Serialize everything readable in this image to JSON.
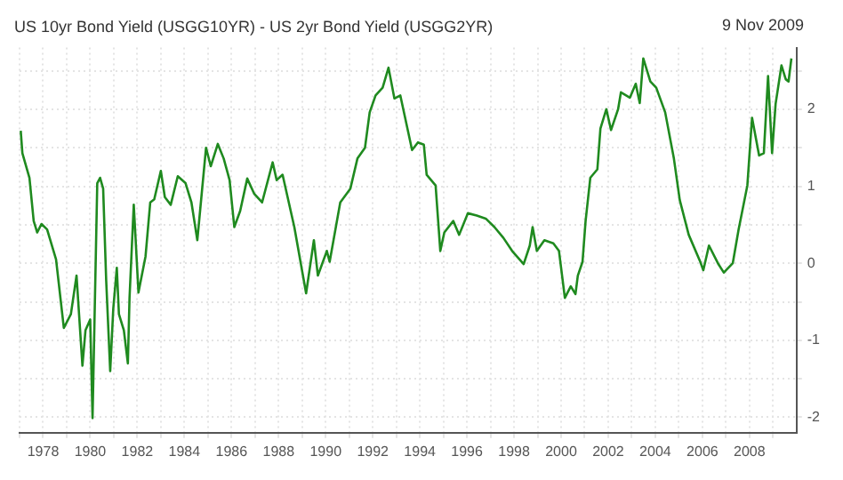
{
  "chart_data": {
    "type": "line",
    "title": "US 10yr Bond Yield (USGG10YR) - US 2yr Bond Yield (USGG2YR)",
    "annotations": [
      "9 Nov 2009"
    ],
    "series": [
      {
        "color": "#1f8a1f",
        "x": [
          1977.05,
          1977.12,
          1977.42,
          1977.6,
          1977.75,
          1977.93,
          1978.17,
          1978.55,
          1978.88,
          1979.18,
          1979.42,
          1979.67,
          1979.8,
          1980.0,
          1980.1,
          1980.17,
          1980.3,
          1980.42,
          1980.55,
          1980.68,
          1980.85,
          1980.98,
          1981.13,
          1981.22,
          1981.43,
          1981.6,
          1981.67,
          1981.85,
          1982.05,
          1982.35,
          1982.55,
          1982.72,
          1983.0,
          1983.17,
          1983.42,
          1983.72,
          1984.05,
          1984.3,
          1984.55,
          1984.92,
          1985.12,
          1985.42,
          1985.67,
          1985.92,
          1986.12,
          1986.37,
          1986.67,
          1986.97,
          1987.3,
          1987.75,
          1987.92,
          1988.17,
          1988.67,
          1989.17,
          1989.5,
          1989.67,
          1990.05,
          1990.17,
          1990.62,
          1991.05,
          1991.35,
          1991.67,
          1991.87,
          1992.12,
          1992.42,
          1992.67,
          1992.92,
          1993.17,
          1993.67,
          1993.92,
          1994.17,
          1994.29,
          1994.67,
          1994.87,
          1995.04,
          1995.42,
          1995.67,
          1996.04,
          1996.42,
          1996.8,
          1997.17,
          1997.55,
          1997.92,
          1998.41,
          1998.67,
          1998.79,
          1998.97,
          1999.29,
          1999.67,
          1999.91,
          2000.16,
          2000.41,
          2000.61,
          2000.71,
          2000.91,
          2001.04,
          2001.24,
          2001.54,
          2001.67,
          2001.92,
          2002.12,
          2002.42,
          2002.54,
          2002.92,
          2003.17,
          2003.34,
          2003.49,
          2003.79,
          2004.04,
          2004.42,
          2004.79,
          2005.04,
          2005.42,
          2005.91,
          2006.04,
          2006.28,
          2006.66,
          2006.91,
          2007.29,
          2007.54,
          2007.91,
          2008.11,
          2008.41,
          2008.61,
          2008.79,
          2008.96,
          2009.11,
          2009.36,
          2009.54,
          2009.66,
          2009.78
        ],
        "values": [
          1.72,
          1.43,
          1.11,
          0.55,
          0.4,
          0.51,
          0.44,
          0.05,
          -0.84,
          -0.66,
          -0.16,
          -1.33,
          -0.87,
          -0.73,
          -2.01,
          -2.01,
          1.04,
          1.11,
          0.97,
          -0.23,
          -1.4,
          -0.59,
          -0.06,
          -0.66,
          -0.87,
          -1.3,
          -0.45,
          0.76,
          -0.38,
          0.09,
          0.79,
          0.83,
          1.2,
          0.86,
          0.76,
          1.13,
          1.04,
          0.79,
          0.3,
          1.5,
          1.26,
          1.55,
          1.36,
          1.08,
          0.47,
          0.68,
          1.1,
          0.9,
          0.79,
          1.31,
          1.08,
          1.15,
          0.47,
          -0.39,
          0.3,
          -0.16,
          0.16,
          0.02,
          0.79,
          0.97,
          1.36,
          1.5,
          1.96,
          2.18,
          2.28,
          2.54,
          2.14,
          2.18,
          1.47,
          1.57,
          1.54,
          1.15,
          1.01,
          0.16,
          0.4,
          0.55,
          0.37,
          0.65,
          0.62,
          0.58,
          0.47,
          0.33,
          0.16,
          -0.01,
          0.23,
          0.47,
          0.16,
          0.3,
          0.26,
          0.16,
          -0.45,
          -0.3,
          -0.4,
          -0.16,
          0.02,
          0.55,
          1.11,
          1.22,
          1.75,
          2.0,
          1.73,
          2.0,
          2.22,
          2.15,
          2.33,
          2.08,
          2.66,
          2.36,
          2.28,
          1.96,
          1.36,
          0.82,
          0.37,
          0.02,
          -0.09,
          0.23,
          0.0,
          -0.12,
          0.0,
          0.44,
          1.01,
          1.89,
          1.4,
          1.43,
          2.43,
          1.43,
          2.07,
          2.57,
          2.39,
          2.36,
          2.66
        ]
      }
    ],
    "xlim": [
      1977,
      2010
    ],
    "xticks": [
      {
        "value": 1977,
        "label": null
      },
      1978,
      {
        "value": 1979,
        "label": null
      },
      1980,
      {
        "value": 1981,
        "label": null
      },
      1982,
      {
        "value": 1983,
        "label": null
      },
      1984,
      {
        "value": 1985,
        "label": null
      },
      1986,
      {
        "value": 1987,
        "label": null
      },
      1988,
      {
        "value": 1989,
        "label": null
      },
      1990,
      {
        "value": 1991,
        "label": null
      },
      1992,
      {
        "value": 1993,
        "label": null
      },
      1994,
      {
        "value": 1995,
        "label": null
      },
      1996,
      {
        "value": 1997,
        "label": null
      },
      1998,
      {
        "value": 1999,
        "label": null
      },
      2000,
      {
        "value": 2001,
        "label": null
      },
      2002,
      {
        "value": 2003,
        "label": null
      },
      2004,
      {
        "value": 2005,
        "label": null
      },
      2006,
      {
        "value": 2007,
        "label": null
      },
      2008,
      {
        "value": 2009,
        "label": null
      }
    ],
    "ylim": [
      -2.2,
      2.8
    ],
    "yticks": [
      -2,
      {
        "value": -1.5,
        "label": null
      },
      -1,
      {
        "value": -0.5,
        "label": null
      },
      0,
      {
        "value": 0.5,
        "label": null
      },
      1,
      {
        "value": 1.5,
        "label": null
      },
      2,
      {
        "value": 2.5,
        "label": null
      }
    ],
    "grid": true,
    "legend": false,
    "marker": "none",
    "line_style": "solid"
  }
}
